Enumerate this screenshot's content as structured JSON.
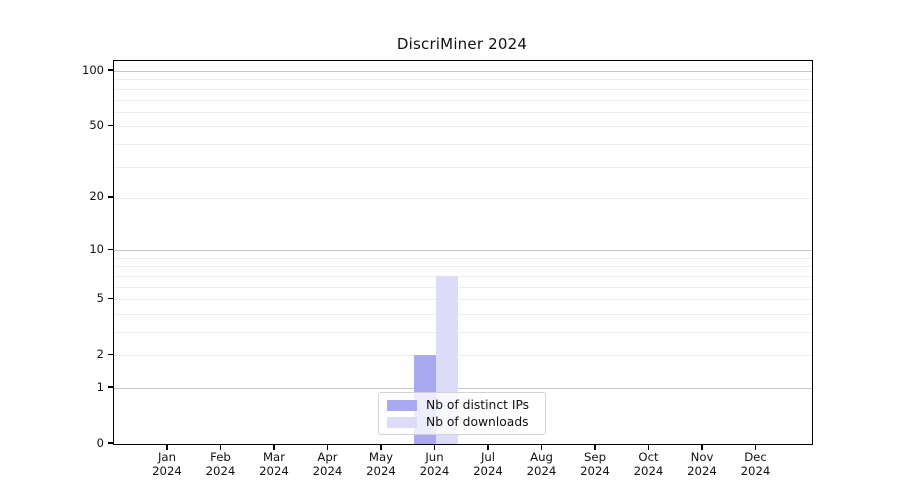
{
  "page": {
    "background": "#ffffff"
  },
  "chart_data": {
    "type": "bar",
    "title": "DiscriMiner 2024",
    "x_categories": [
      "Jan",
      "Feb",
      "Mar",
      "Apr",
      "May",
      "Jun",
      "Jul",
      "Aug",
      "Sep",
      "Oct",
      "Nov",
      "Dec"
    ],
    "x_year": "2024",
    "series": [
      {
        "name": "Nb of distinct IPs",
        "color": "#a9a9f0",
        "values": [
          0,
          0,
          0,
          0,
          0,
          2,
          0,
          0,
          0,
          0,
          0,
          0
        ]
      },
      {
        "name": "Nb of downloads",
        "color": "#dcdcf8",
        "values": [
          0,
          0,
          0,
          0,
          0,
          7,
          0,
          0,
          0,
          0,
          0,
          0
        ]
      }
    ],
    "y_scale": "log1p",
    "y_tick_labels": [
      0,
      1,
      2,
      5,
      10,
      20,
      50,
      100
    ],
    "y_major_gridlines": [
      1,
      10,
      100
    ],
    "y_minor_gridlines": [
      2,
      3,
      4,
      5,
      6,
      7,
      8,
      9,
      20,
      30,
      40,
      50,
      60,
      70,
      80,
      90
    ],
    "ylim": [
      0,
      113
    ],
    "grid": "on",
    "legend_position": "bottom-center",
    "colors": {
      "axis": "#000000",
      "major_grid": "#c6c6c6",
      "minor_grid": "#ededed",
      "text": "#111111",
      "legend_border": "#d2d2d2"
    }
  }
}
